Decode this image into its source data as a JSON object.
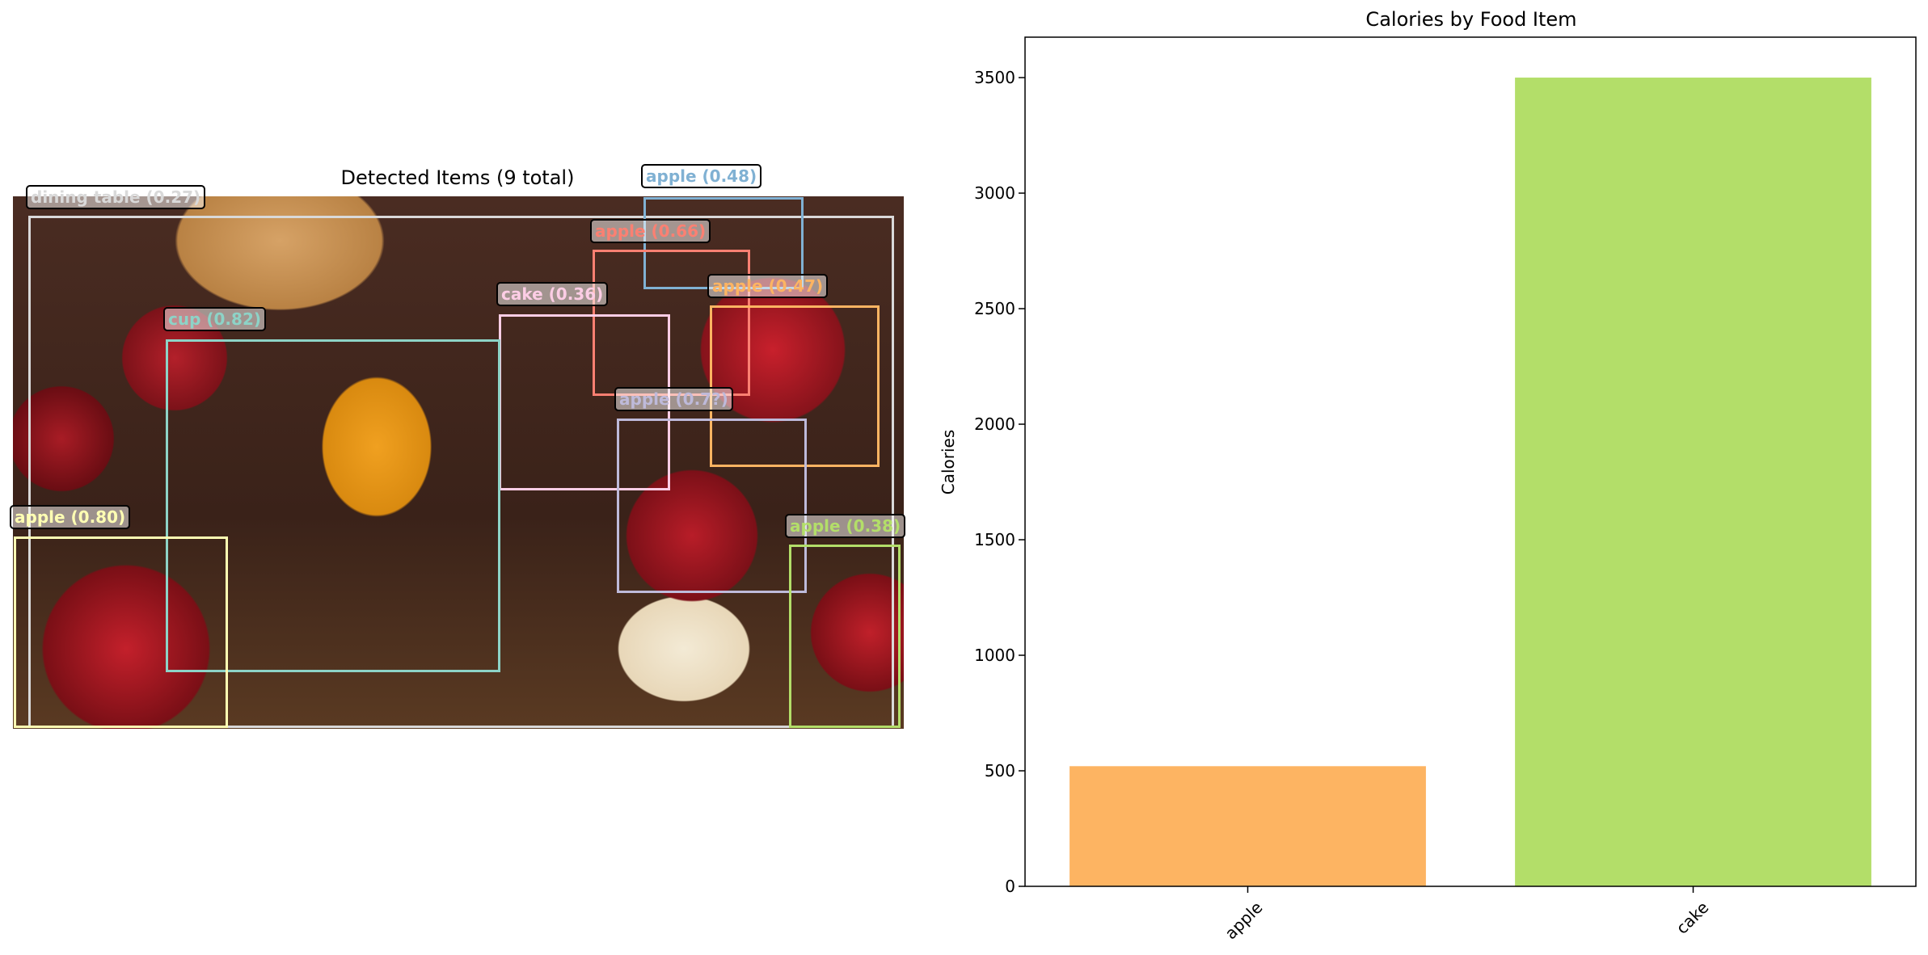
{
  "left_panel": {
    "title": "Detected Items (9 total)",
    "detections": [
      {
        "label": "dining table (0.27)",
        "color": "#d9d9d9"
      },
      {
        "label": "apple (0.48)",
        "color": "#80b1d3"
      },
      {
        "label": "apple (0.66)",
        "color": "#fb8072"
      },
      {
        "label": "cake (0.36)",
        "color": "#fccde5"
      },
      {
        "label": "apple (0.47)",
        "color": "#fdb462"
      },
      {
        "label": "cup (0.82)",
        "color": "#8dd3c7"
      },
      {
        "label": "apple (0.7?)",
        "color": "#bebada"
      },
      {
        "label": "apple (0.80)",
        "color": "#ffffb3"
      },
      {
        "label": "apple (0.38)",
        "color": "#b3de69"
      }
    ]
  },
  "chart_data": {
    "type": "bar",
    "title": "Calories by Food Item",
    "xlabel": "",
    "ylabel": "Calories",
    "categories": [
      "apple",
      "cake"
    ],
    "values": [
      520,
      3500
    ],
    "colors": [
      "#fdb462",
      "#b3de69"
    ],
    "ylim": [
      0,
      3675
    ],
    "yticks": [
      0,
      500,
      1000,
      1500,
      2000,
      2500,
      3000,
      3500
    ],
    "grid": false
  }
}
